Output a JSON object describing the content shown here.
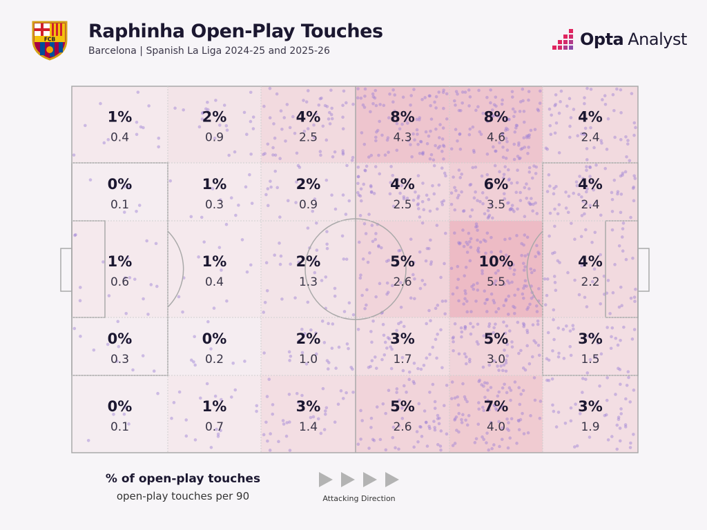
{
  "header": {
    "title": "Raphinha Open-Play Touches",
    "subtitle": "Barcelona | Spanish La Liga 2024-25 and 2025-26",
    "crest_text": "FCB",
    "brand_bold": "Opta",
    "brand_light": "Analyst"
  },
  "legend": {
    "primary": "% of open-play touches",
    "secondary": "open-play touches per 90",
    "direction_label": "Attacking Direction"
  },
  "colors": {
    "cell_fill": "#e79aa6",
    "dot": "#9b7fd4",
    "pitch_line": "#a9a9a9",
    "brand_accent": "#e0245e"
  },
  "chart_data": {
    "type": "heatmap",
    "title": "Raphinha Open-Play Touches",
    "subtitle": "Barcelona | Spanish La Liga 2024-25 and 2025-26",
    "attacking_direction": "left-to-right",
    "grid": {
      "rows": 5,
      "columns": 6
    },
    "cells": [
      [
        {
          "pct": "1%",
          "per90": "0.4"
        },
        {
          "pct": "2%",
          "per90": "0.9"
        },
        {
          "pct": "4%",
          "per90": "2.5"
        },
        {
          "pct": "8%",
          "per90": "4.3"
        },
        {
          "pct": "8%",
          "per90": "4.6"
        },
        {
          "pct": "4%",
          "per90": "2.4"
        }
      ],
      [
        {
          "pct": "0%",
          "per90": "0.1"
        },
        {
          "pct": "1%",
          "per90": "0.3"
        },
        {
          "pct": "2%",
          "per90": "0.9"
        },
        {
          "pct": "4%",
          "per90": "2.5"
        },
        {
          "pct": "6%",
          "per90": "3.5"
        },
        {
          "pct": "4%",
          "per90": "2.4"
        }
      ],
      [
        {
          "pct": "1%",
          "per90": "0.6"
        },
        {
          "pct": "1%",
          "per90": "0.4"
        },
        {
          "pct": "2%",
          "per90": "1.3"
        },
        {
          "pct": "5%",
          "per90": "2.6"
        },
        {
          "pct": "10%",
          "per90": "5.5"
        },
        {
          "pct": "4%",
          "per90": "2.2"
        }
      ],
      [
        {
          "pct": "0%",
          "per90": "0.3"
        },
        {
          "pct": "0%",
          "per90": "0.2"
        },
        {
          "pct": "2%",
          "per90": "1.0"
        },
        {
          "pct": "3%",
          "per90": "1.7"
        },
        {
          "pct": "5%",
          "per90": "3.0"
        },
        {
          "pct": "3%",
          "per90": "1.5"
        }
      ],
      [
        {
          "pct": "0%",
          "per90": "0.1"
        },
        {
          "pct": "1%",
          "per90": "0.7"
        },
        {
          "pct": "3%",
          "per90": "1.4"
        },
        {
          "pct": "5%",
          "per90": "2.6"
        },
        {
          "pct": "7%",
          "per90": "4.0"
        },
        {
          "pct": "3%",
          "per90": "1.9"
        }
      ]
    ]
  }
}
